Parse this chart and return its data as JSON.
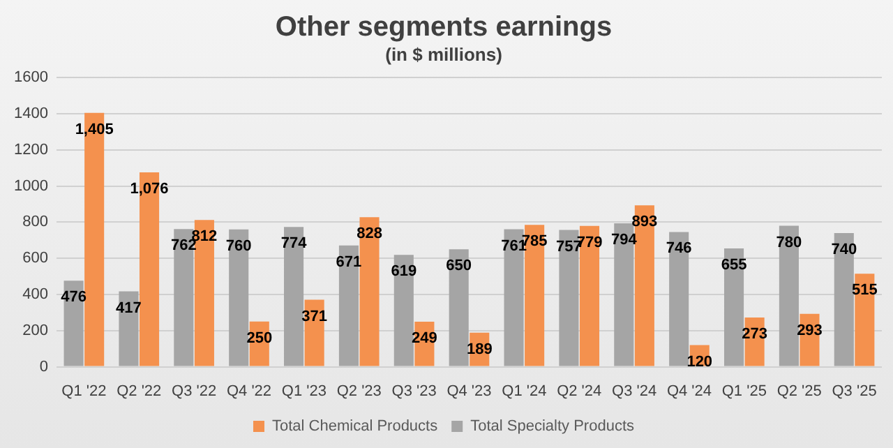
{
  "chart_data": {
    "type": "bar",
    "title": "Other segments earnings",
    "subtitle": "(in $ millions)",
    "categories": [
      "Q1 '22",
      "Q2 '22",
      "Q3 '22",
      "Q4 '22",
      "Q1 '23",
      "Q2 '23",
      "Q3 '23",
      "Q4 '23",
      "Q1 '24",
      "Q2 '24",
      "Q3 '24",
      "Q4 '24",
      "Q1 '25",
      "Q2 '25",
      "Q3 '25"
    ],
    "series": [
      {
        "name": "Total Specialty Products",
        "color": "#a5a5a5",
        "values": [
          476,
          417,
          762,
          760,
          774,
          671,
          619,
          650,
          761,
          757,
          794,
          746,
          655,
          780,
          740
        ],
        "value_labels": [
          "476",
          "417",
          "762",
          "760",
          "774",
          "671",
          "619",
          "650",
          "761",
          "757",
          "794",
          "746",
          "655",
          "780",
          "740"
        ]
      },
      {
        "name": "Total Chemical Products",
        "color": "#f4914e",
        "values": [
          1405,
          1076,
          812,
          250,
          371,
          828,
          249,
          189,
          785,
          779,
          893,
          120,
          273,
          293,
          515
        ],
        "value_labels": [
          "1,405",
          "1,076",
          "812",
          "250",
          "371",
          "828",
          "249",
          "189",
          "785",
          "779",
          "893",
          "120",
          "273",
          "293",
          "515"
        ]
      }
    ],
    "ylim": [
      0,
      1600
    ],
    "yticks": [
      0,
      200,
      400,
      600,
      800,
      1000,
      1200,
      1400,
      1600
    ],
    "grid": "y",
    "legend": "bottom"
  }
}
